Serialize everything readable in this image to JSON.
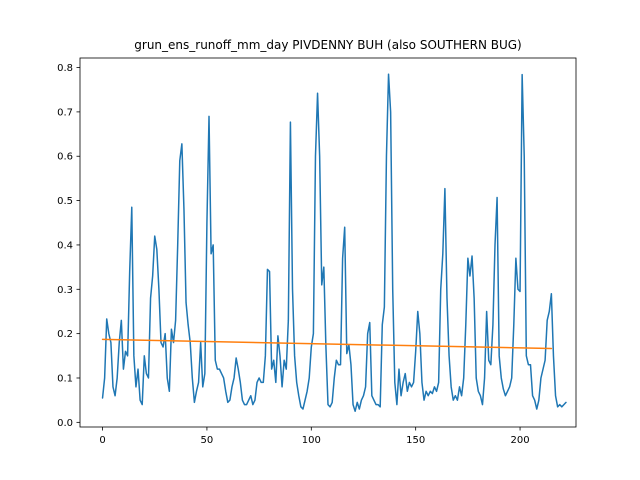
{
  "chart_data": {
    "type": "line",
    "title": "grun_ens_runoff_mm_day PIVDENNY BUH (also SOUTHERN BUG)",
    "xlabel": "",
    "ylabel": "",
    "xlim": [
      -10.8,
      226.8
    ],
    "ylim": [
      -0.0105,
      0.8215
    ],
    "x_ticks": [
      0,
      50,
      100,
      150,
      200
    ],
    "y_ticks": [
      0.0,
      0.1,
      0.2,
      0.3,
      0.4,
      0.5,
      0.6,
      0.7,
      0.8
    ],
    "x_tick_labels": [
      "0",
      "50",
      "100",
      "150",
      "200"
    ],
    "y_tick_labels": [
      "0.0",
      "0.1",
      "0.2",
      "0.3",
      "0.4",
      "0.5",
      "0.6",
      "0.7",
      "0.8"
    ],
    "grid": false,
    "colors": {
      "series_1": "#1f77b4",
      "series_2": "#ff7f0e"
    },
    "series": [
      {
        "x_start": 0,
        "values": [
          0.055,
          0.1,
          0.233,
          0.2,
          0.18,
          0.08,
          0.06,
          0.1,
          0.18,
          0.23,
          0.12,
          0.16,
          0.15,
          0.34,
          0.485,
          0.15,
          0.08,
          0.12,
          0.05,
          0.04,
          0.15,
          0.11,
          0.1,
          0.28,
          0.33,
          0.42,
          0.39,
          0.3,
          0.18,
          0.17,
          0.2,
          0.1,
          0.07,
          0.21,
          0.18,
          0.23,
          0.4,
          0.59,
          0.628,
          0.48,
          0.27,
          0.22,
          0.18,
          0.1,
          0.045,
          0.07,
          0.09,
          0.18,
          0.08,
          0.11,
          0.45,
          0.69,
          0.38,
          0.4,
          0.14,
          0.12,
          0.12,
          0.11,
          0.1,
          0.07,
          0.045,
          0.05,
          0.08,
          0.1,
          0.145,
          0.12,
          0.09,
          0.05,
          0.04,
          0.04,
          0.05,
          0.06,
          0.04,
          0.05,
          0.09,
          0.1,
          0.09,
          0.09,
          0.15,
          0.345,
          0.34,
          0.12,
          0.14,
          0.09,
          0.195,
          0.15,
          0.08,
          0.14,
          0.12,
          0.23,
          0.677,
          0.3,
          0.15,
          0.09,
          0.06,
          0.035,
          0.03,
          0.05,
          0.07,
          0.1,
          0.17,
          0.2,
          0.6,
          0.742,
          0.6,
          0.31,
          0.35,
          0.17,
          0.04,
          0.035,
          0.045,
          0.1,
          0.14,
          0.13,
          0.13,
          0.37,
          0.44,
          0.155,
          0.175,
          0.13,
          0.04,
          0.025,
          0.045,
          0.03,
          0.05,
          0.06,
          0.08,
          0.2,
          0.225,
          0.06,
          0.05,
          0.04,
          0.04,
          0.035,
          0.22,
          0.26,
          0.6,
          0.785,
          0.7,
          0.3,
          0.09,
          0.04,
          0.12,
          0.06,
          0.09,
          0.11,
          0.07,
          0.09,
          0.08,
          0.09,
          0.16,
          0.25,
          0.2,
          0.09,
          0.05,
          0.07,
          0.06,
          0.07,
          0.065,
          0.08,
          0.07,
          0.09,
          0.3,
          0.38,
          0.527,
          0.28,
          0.15,
          0.08,
          0.05,
          0.06,
          0.05,
          0.08,
          0.06,
          0.1,
          0.22,
          0.37,
          0.33,
          0.375,
          0.28,
          0.1,
          0.07,
          0.06,
          0.04,
          0.1,
          0.25,
          0.14,
          0.13,
          0.22,
          0.4,
          0.507,
          0.15,
          0.1,
          0.075,
          0.06,
          0.07,
          0.08,
          0.1,
          0.22,
          0.37,
          0.3,
          0.295,
          0.784,
          0.6,
          0.15,
          0.13,
          0.13,
          0.06,
          0.05,
          0.03,
          0.05,
          0.1,
          0.12,
          0.14,
          0.23,
          0.25,
          0.29,
          0.15,
          0.06,
          0.035,
          0.04,
          0.035,
          0.04,
          0.045
        ]
      },
      {
        "x_start": 0,
        "trend": [
          0.187,
          0.1665
        ],
        "x_end": 215
      }
    ]
  }
}
